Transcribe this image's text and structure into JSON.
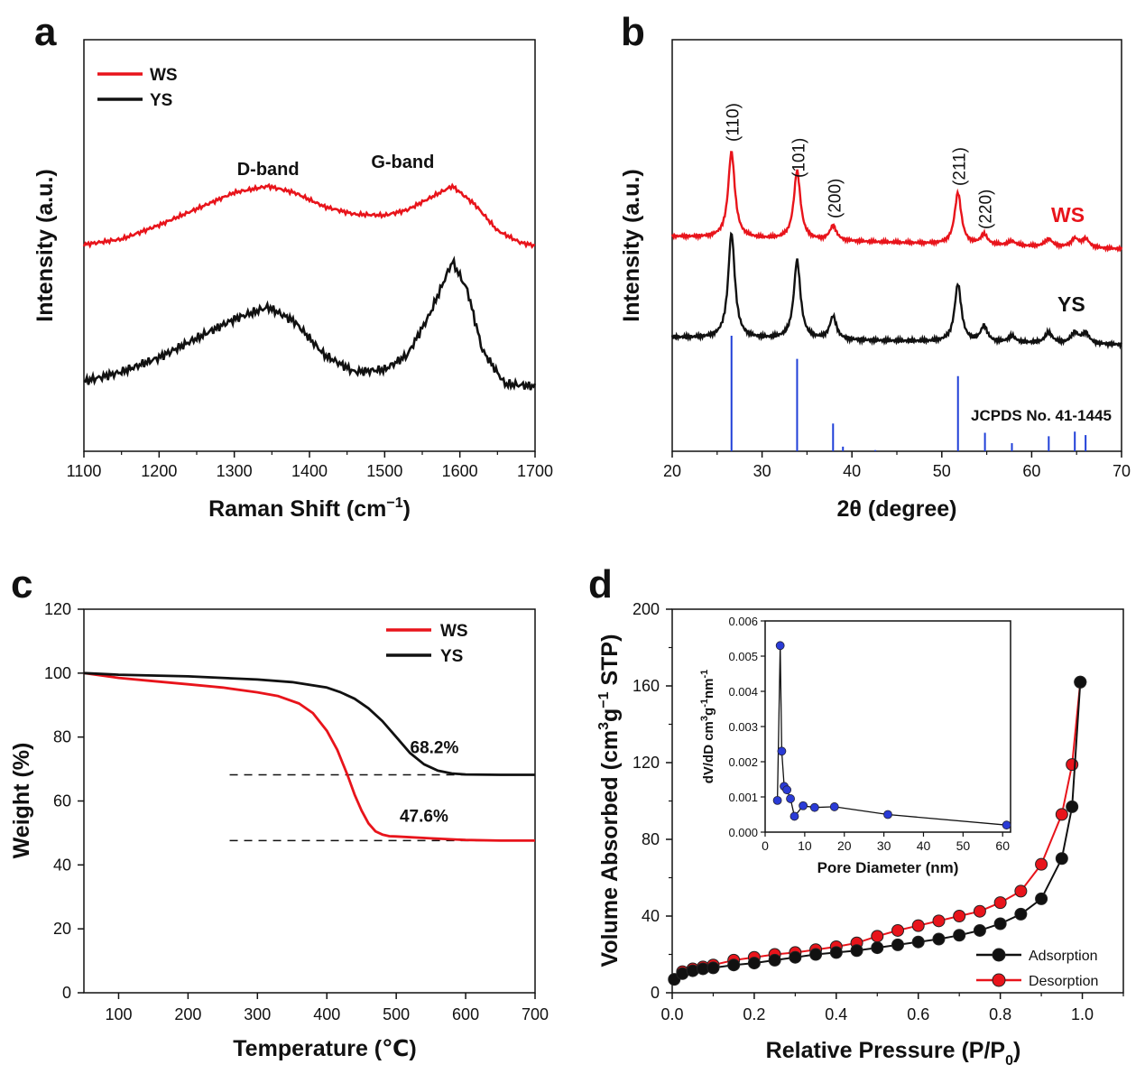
{
  "colors": {
    "ws": "#e8141b",
    "ys": "#111111",
    "ref": "#1f3fd8",
    "inset": "#2a3bd6"
  },
  "chart_data": [
    {
      "panel": "a",
      "type": "line",
      "xlabel_main": "Raman Shift (cm",
      "xlabel_sup": "−1",
      "xlabel_end": ")",
      "ylabel": "Intensity (a.u.)",
      "xlim": [
        1100,
        1700
      ],
      "xticks": [
        1100,
        1200,
        1300,
        1400,
        1500,
        1600,
        1700
      ],
      "annotations": [
        {
          "text": "D-band",
          "x": 1345
        },
        {
          "text": "G-band",
          "x": 1590
        }
      ],
      "legend": {
        "placement": "top-left"
      },
      "series": [
        {
          "name": "WS",
          "color": "#e8141b",
          "x": [
            1100,
            1150,
            1200,
            1250,
            1300,
            1345,
            1380,
            1420,
            1460,
            1500,
            1530,
            1560,
            1590,
            1620,
            1650,
            1680,
            1700
          ],
          "y": [
            0.45,
            0.5,
            0.63,
            0.78,
            0.93,
            0.99,
            0.93,
            0.8,
            0.73,
            0.72,
            0.77,
            0.88,
            0.99,
            0.82,
            0.58,
            0.47,
            0.44
          ]
        },
        {
          "name": "YS",
          "color": "#111111",
          "x": [
            1100,
            1150,
            1200,
            1250,
            1300,
            1345,
            1380,
            1420,
            1460,
            1500,
            1530,
            1560,
            1590,
            1610,
            1630,
            1660,
            1700
          ],
          "y": [
            0.02,
            0.06,
            0.12,
            0.2,
            0.28,
            0.33,
            0.27,
            0.13,
            0.06,
            0.07,
            0.13,
            0.3,
            0.52,
            0.4,
            0.15,
            0.01,
            0.0
          ]
        }
      ]
    },
    {
      "panel": "b",
      "type": "line",
      "xlabel": "2θ (degree)",
      "ylabel": "Intensity (a.u.)",
      "xlim": [
        20,
        70
      ],
      "xticks": [
        20,
        30,
        40,
        50,
        60,
        70
      ],
      "peak_labels": [
        {
          "text": "(110)",
          "x": 26.6
        },
        {
          "text": "(101)",
          "x": 33.9
        },
        {
          "text": "(200)",
          "x": 37.9
        },
        {
          "text": "(211)",
          "x": 51.8
        },
        {
          "text": "(220)",
          "x": 54.7
        }
      ],
      "series_labels": [
        "WS",
        "YS"
      ],
      "reference_label": "JCPDS No. 41-1445",
      "peaks": [
        {
          "pos": 26.6,
          "ws": 1.0,
          "ys": 1.0,
          "w": 0.45
        },
        {
          "pos": 33.9,
          "ws": 0.8,
          "ys": 0.75,
          "w": 0.45
        },
        {
          "pos": 37.9,
          "ws": 0.17,
          "ys": 0.22,
          "w": 0.45
        },
        {
          "pos": 51.8,
          "ws": 0.6,
          "ys": 0.55,
          "w": 0.45
        },
        {
          "pos": 54.7,
          "ws": 0.12,
          "ys": 0.15,
          "w": 0.45
        },
        {
          "pos": 57.8,
          "ws": 0.05,
          "ys": 0.06,
          "w": 0.5
        },
        {
          "pos": 61.9,
          "ws": 0.09,
          "ys": 0.1,
          "w": 0.5
        },
        {
          "pos": 64.8,
          "ws": 0.1,
          "ys": 0.1,
          "w": 0.5
        },
        {
          "pos": 66.0,
          "ws": 0.1,
          "ys": 0.1,
          "w": 0.5
        }
      ],
      "reference_lines": [
        {
          "x": 26.6,
          "h": 100
        },
        {
          "x": 33.9,
          "h": 80
        },
        {
          "x": 37.9,
          "h": 24
        },
        {
          "x": 39.0,
          "h": 4
        },
        {
          "x": 42.6,
          "h": 1
        },
        {
          "x": 51.8,
          "h": 65
        },
        {
          "x": 54.8,
          "h": 16
        },
        {
          "x": 57.8,
          "h": 7
        },
        {
          "x": 61.9,
          "h": 13
        },
        {
          "x": 64.8,
          "h": 17
        },
        {
          "x": 66.0,
          "h": 14
        }
      ]
    },
    {
      "panel": "c",
      "type": "line",
      "xlabel": "Temperature (℃)",
      "ylabel": "Weight (%)",
      "xlim": [
        50,
        700
      ],
      "ylim": [
        0,
        120
      ],
      "xticks": [
        100,
        200,
        300,
        400,
        500,
        600,
        700
      ],
      "yticks": [
        0,
        20,
        40,
        60,
        80,
        100,
        120
      ],
      "legend": {
        "placement": "top-right"
      },
      "annotations": [
        {
          "text": "68.2%",
          "x": 555,
          "y": 75
        },
        {
          "text": "47.6%",
          "x": 540,
          "y": 53.5
        }
      ],
      "reference_levels": [
        68.2,
        47.6
      ],
      "series": [
        {
          "name": "WS",
          "color": "#e8141b",
          "x": [
            50,
            100,
            150,
            200,
            250,
            300,
            330,
            360,
            380,
            400,
            415,
            430,
            440,
            450,
            460,
            470,
            480,
            490,
            500,
            550,
            600,
            650,
            700
          ],
          "y": [
            100,
            98.5,
            97.5,
            96.5,
            95.5,
            94,
            92.8,
            90.5,
            87.5,
            82,
            76,
            68,
            62,
            57,
            53,
            50.5,
            49.5,
            49,
            48.9,
            48.3,
            47.8,
            47.6,
            47.6
          ]
        },
        {
          "name": "YS",
          "color": "#111111",
          "x": [
            50,
            100,
            200,
            300,
            350,
            400,
            420,
            440,
            460,
            480,
            500,
            520,
            540,
            560,
            580,
            600,
            650,
            700
          ],
          "y": [
            100,
            99.5,
            99,
            98,
            97.2,
            95.5,
            94,
            92,
            89,
            85,
            80,
            75,
            71.5,
            69.5,
            68.6,
            68.3,
            68.2,
            68.2
          ]
        }
      ]
    },
    {
      "panel": "d",
      "type": "line",
      "xlabel_main": "Relative Pressure (P/P",
      "xlabel_sub": "0",
      "xlabel_end": ")",
      "ylabel_parts": [
        "Volume Absorbed (cm",
        "3",
        "g",
        "−1",
        " STP)"
      ],
      "xlim": [
        0,
        1.1
      ],
      "ylim": [
        0,
        200
      ],
      "xticks": [
        "0.0",
        "0.2",
        "0.4",
        "0.6",
        "0.8",
        "1.0"
      ],
      "yticks": [
        0,
        40,
        80,
        120,
        160,
        200
      ],
      "legend": {
        "placement": "bottom-right"
      },
      "series": [
        {
          "name": "Adsorption",
          "color": "#111111",
          "x": [
            0.005,
            0.025,
            0.05,
            0.075,
            0.1,
            0.15,
            0.2,
            0.25,
            0.3,
            0.35,
            0.4,
            0.45,
            0.5,
            0.55,
            0.6,
            0.65,
            0.7,
            0.75,
            0.8,
            0.85,
            0.9,
            0.95,
            0.975,
            0.995
          ],
          "y": [
            7,
            10,
            11.5,
            12.5,
            13,
            14.5,
            15.5,
            17,
            18.5,
            20,
            21,
            22,
            23.5,
            25,
            26.5,
            28,
            30,
            32.5,
            36,
            41,
            49,
            70,
            97,
            162
          ]
        },
        {
          "name": "Desorption",
          "color": "#e8141b",
          "x": [
            0.025,
            0.05,
            0.075,
            0.1,
            0.15,
            0.2,
            0.25,
            0.3,
            0.35,
            0.4,
            0.45,
            0.5,
            0.55,
            0.6,
            0.65,
            0.7,
            0.75,
            0.8,
            0.85,
            0.9,
            0.95,
            0.975,
            0.995
          ],
          "y": [
            11,
            12.5,
            13.5,
            14.5,
            17,
            18.5,
            20,
            21,
            22.5,
            24,
            26,
            29.5,
            32.5,
            35,
            37.5,
            40,
            42.5,
            47,
            53,
            67,
            93,
            119,
            162
          ]
        }
      ],
      "inset": {
        "type": "line",
        "xlabel": "Pore Diameter (nm)",
        "ylabel_parts": [
          "dV/dD cm",
          "3",
          "g",
          "-1",
          "nm",
          "-1"
        ],
        "xlim": [
          0,
          62
        ],
        "ylim": [
          0,
          0.006
        ],
        "xticks": [
          0,
          10,
          20,
          30,
          40,
          50,
          60
        ],
        "yticks": [
          "0.000",
          "0.001",
          "0.002",
          "0.003",
          "0.004",
          "0.005",
          "0.006"
        ],
        "x": [
          3.1,
          3.8,
          4.2,
          4.8,
          5.5,
          6.4,
          7.4,
          9.6,
          12.5,
          17.5,
          31,
          61
        ],
        "y": [
          0.0009,
          0.0053,
          0.0023,
          0.0013,
          0.0012,
          0.00095,
          0.00045,
          0.00075,
          0.0007,
          0.00072,
          0.0005,
          0.0002
        ]
      }
    }
  ],
  "panel_labels": [
    "a",
    "b",
    "c",
    "d"
  ]
}
